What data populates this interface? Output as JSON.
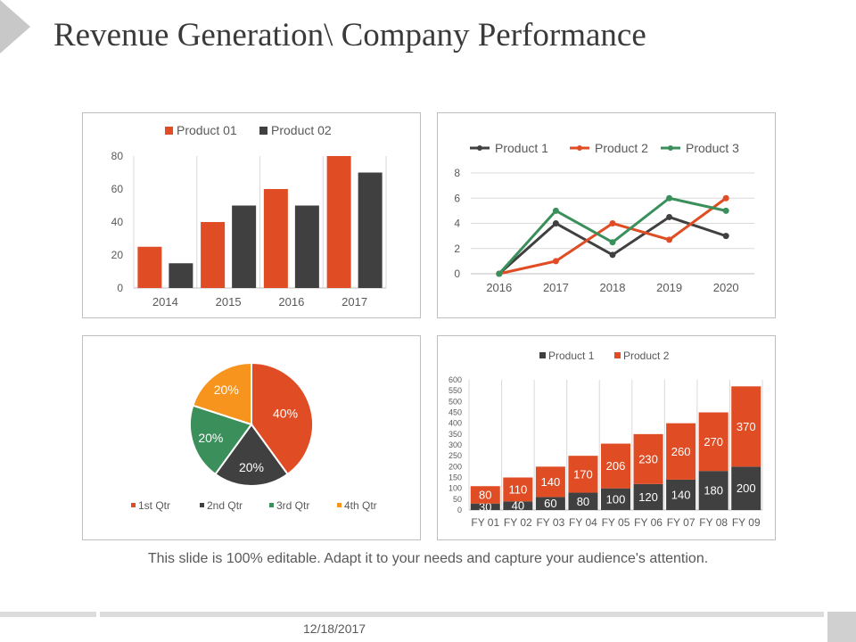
{
  "slide": {
    "title": "Revenue Generation\\ Company Performance",
    "caption": "This slide is 100% editable. Adapt it to your needs and capture your audience's attention.",
    "date": "12/18/2017",
    "icons": [
      "triangle-arrow-icon"
    ],
    "colors": {
      "orange": "#e04d24",
      "dark": "#404040",
      "green": "#3a8f5b",
      "amber": "#f7941d",
      "grid": "#d9d9d9"
    }
  },
  "chart_data": [
    {
      "type": "bar",
      "categories": [
        "2014",
        "2015",
        "2016",
        "2017"
      ],
      "series": [
        {
          "name": "Product 01",
          "values": [
            25,
            40,
            60,
            80
          ],
          "color": "#e04d24"
        },
        {
          "name": "Product 02",
          "values": [
            15,
            50,
            50,
            70
          ],
          "color": "#404040"
        }
      ],
      "yticks": [
        "0",
        "20",
        "40",
        "60",
        "80"
      ],
      "ylim": [
        0,
        80
      ],
      "legend": "top",
      "grid": "vertical"
    },
    {
      "type": "line",
      "categories": [
        "2016",
        "2017",
        "2018",
        "2019",
        "2020"
      ],
      "series": [
        {
          "name": "Product 1",
          "values": [
            0,
            4,
            1.5,
            4.5,
            3
          ],
          "color": "#404040"
        },
        {
          "name": "Product  2",
          "values": [
            0,
            1,
            4,
            2.7,
            6
          ],
          "color": "#e04d24"
        },
        {
          "name": "Product 3",
          "values": [
            0,
            5,
            2.5,
            6,
            5
          ],
          "color": "#3a8f5b"
        }
      ],
      "yticks": [
        "0",
        "2",
        "4",
        "6",
        "8"
      ],
      "ylim": [
        0,
        8
      ],
      "legend": "top",
      "grid": "horizontal"
    },
    {
      "type": "pie",
      "categories": [
        "1st Qtr",
        "2nd Qtr",
        "3rd Qtr",
        "4th Qtr"
      ],
      "values": [
        40,
        20,
        20,
        20
      ],
      "labels": [
        "40%",
        "20%",
        "20%",
        "20%"
      ],
      "colors": [
        "#e04d24",
        "#404040",
        "#3a8f5b",
        "#f7941d"
      ],
      "legend": "bottom"
    },
    {
      "type": "bar",
      "stacked": true,
      "categories": [
        "FY 01",
        "FY 02",
        "FY 03",
        "FY 04",
        "FY 05",
        "FY 06",
        "FY 07",
        "FY 08",
        "FY 09"
      ],
      "series": [
        {
          "name": "Product 1",
          "values": [
            30,
            40,
            60,
            80,
            100,
            120,
            140,
            180,
            200
          ],
          "color": "#404040"
        },
        {
          "name": "Product 2",
          "values": [
            80,
            110,
            140,
            170,
            206,
            230,
            260,
            270,
            370
          ],
          "color": "#e04d24"
        }
      ],
      "yticks": [
        "0",
        "50",
        "100",
        "150",
        "200",
        "250",
        "300",
        "350",
        "400",
        "450",
        "500",
        "550",
        "600"
      ],
      "ylim": [
        0,
        600
      ],
      "legend": "top",
      "grid": "vertical"
    }
  ]
}
